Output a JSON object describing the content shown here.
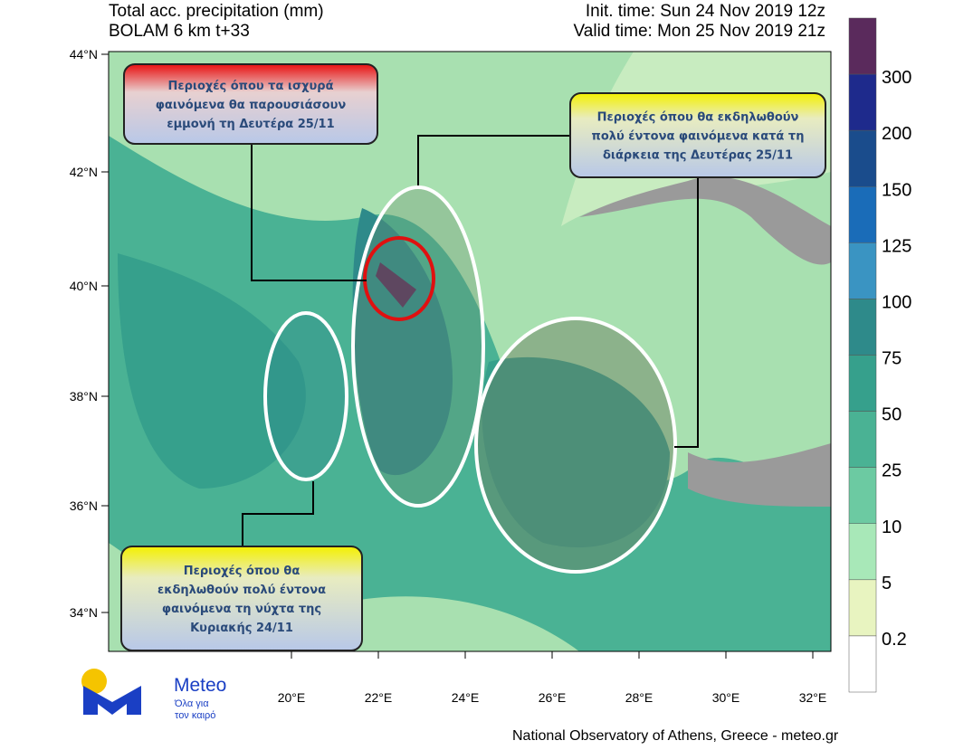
{
  "header": {
    "title_left": [
      "Total acc. precipitation (mm)",
      "BOLAM 6 km t+33"
    ],
    "title_right": [
      "Init. time: Sun 24 Nov 2019 12z",
      "Valid time: Mon 25 Nov 2019 21z"
    ]
  },
  "lat_ticks": [
    "44°N",
    "42°N",
    "40°N",
    "38°N",
    "36°N",
    "34°N"
  ],
  "lon_ticks": [
    "20°E",
    "22°E",
    "24°E",
    "26°E",
    "28°E",
    "30°E",
    "32°E"
  ],
  "colorbar": {
    "labels": [
      "300",
      "200",
      "150",
      "125",
      "100",
      "75",
      "50",
      "25",
      "10",
      "5",
      "0.2"
    ],
    "colors": [
      "#5a2a5c",
      "#1e2a8c",
      "#1a4c8c",
      "#1a6cb8",
      "#3a94c2",
      "#2e8a8a",
      "#36a08c",
      "#4ab294",
      "#6ccaa2",
      "#a8e8b8",
      "#e8f4c0",
      "#ffffff"
    ]
  },
  "callouts": [
    {
      "lines": [
        "Περιοχές όπου τα ισχυρά",
        "φαινόμενα θα παρουσιάσουν",
        "εμμονή τη Δευτέρα 25/11"
      ]
    },
    {
      "lines": [
        "Περιοχές όπου θα εκδηλωθούν",
        "πολύ έντονα φαινόμενα κατά τη",
        "διάρκεια της Δευτέρας 25/11"
      ]
    },
    {
      "lines": [
        "Περιοχές όπου θα",
        "εκδηλωθούν πολύ έντονα",
        "φαινόμενα τη νύχτα της",
        "Κυριακής 24/11"
      ]
    }
  ],
  "logo": {
    "name": "Meteo",
    "tagline": [
      "Όλα για",
      "τον καιρό"
    ]
  },
  "footer": "National Observatory of Athens, Greece - meteo.gr"
}
